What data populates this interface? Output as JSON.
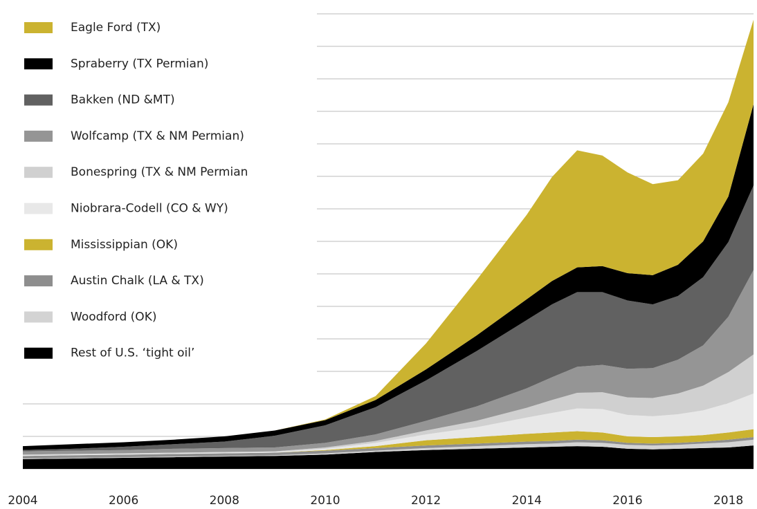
{
  "chart_data": {
    "type": "stacked-area",
    "x": [
      2004,
      2005,
      2006,
      2007,
      2008,
      2009,
      2010,
      2011,
      2012,
      2013,
      2014,
      2014.5,
      2015,
      2015.5,
      2016,
      2016.5,
      2017,
      2017.5,
      2018,
      2018.5
    ],
    "xlim": [
      2004,
      2018.5
    ],
    "xticks": [
      2004,
      2006,
      2008,
      2010,
      2012,
      2014,
      2016,
      2018
    ],
    "ylim": [
      0,
      7
    ],
    "yticks": [
      0,
      0.5,
      1,
      1.5,
      2,
      2.5,
      3,
      3.5,
      4,
      4.5,
      5,
      5.5,
      6,
      6.5,
      7
    ],
    "grid": true,
    "series": [
      {
        "name": "Rest of U.S. ‘tight oil’",
        "color": "#000000",
        "values": [
          0.15,
          0.16,
          0.17,
          0.18,
          0.19,
          0.2,
          0.22,
          0.26,
          0.29,
          0.31,
          0.33,
          0.34,
          0.35,
          0.34,
          0.31,
          0.3,
          0.31,
          0.32,
          0.33,
          0.36
        ]
      },
      {
        "name": "Woodford (OK)",
        "color": "#d3d3d3",
        "values": [
          0.01,
          0.01,
          0.01,
          0.01,
          0.01,
          0.01,
          0.02,
          0.02,
          0.03,
          0.04,
          0.05,
          0.05,
          0.06,
          0.06,
          0.06,
          0.06,
          0.06,
          0.07,
          0.08,
          0.09
        ]
      },
      {
        "name": "Austin Chalk (LA & TX)",
        "color": "#8e8e8e",
        "values": [
          0.04,
          0.04,
          0.04,
          0.04,
          0.04,
          0.04,
          0.04,
          0.04,
          0.04,
          0.04,
          0.04,
          0.04,
          0.04,
          0.04,
          0.03,
          0.03,
          0.03,
          0.03,
          0.04,
          0.04
        ]
      },
      {
        "name": "Mississippian (OK)",
        "color": "#cbb330",
        "values": [
          0,
          0,
          0,
          0,
          0,
          0,
          0.01,
          0.03,
          0.08,
          0.1,
          0.12,
          0.13,
          0.13,
          0.12,
          0.1,
          0.1,
          0.1,
          0.1,
          0.11,
          0.12
        ]
      },
      {
        "name": "Niobrara-Codell (CO & WY)",
        "color": "#e8e8e8",
        "values": [
          0.01,
          0.01,
          0.01,
          0.01,
          0.01,
          0.01,
          0.02,
          0.05,
          0.09,
          0.15,
          0.25,
          0.3,
          0.35,
          0.36,
          0.33,
          0.32,
          0.34,
          0.38,
          0.45,
          0.55
        ]
      },
      {
        "name": "Bonespring (TX & NM Permian",
        "color": "#d0d0d0",
        "values": [
          0.01,
          0.01,
          0.01,
          0.01,
          0.01,
          0.01,
          0.02,
          0.03,
          0.06,
          0.1,
          0.15,
          0.2,
          0.24,
          0.26,
          0.27,
          0.28,
          0.32,
          0.38,
          0.48,
          0.6
        ]
      },
      {
        "name": "Wolfcamp (TX & NM Permian)",
        "color": "#959595",
        "values": [
          0.05,
          0.05,
          0.05,
          0.06,
          0.06,
          0.06,
          0.07,
          0.1,
          0.15,
          0.22,
          0.3,
          0.35,
          0.4,
          0.42,
          0.44,
          0.46,
          0.52,
          0.62,
          0.85,
          1.3
        ]
      },
      {
        "name": "Bakken (ND &MT)",
        "color": "#616161",
        "values": [
          0.02,
          0.03,
          0.05,
          0.07,
          0.1,
          0.18,
          0.27,
          0.42,
          0.62,
          0.85,
          1.05,
          1.12,
          1.15,
          1.12,
          1.05,
          0.98,
          0.98,
          1.05,
          1.15,
          1.3
        ]
      },
      {
        "name": "Spraberry (TX Permian)",
        "color": "#000000",
        "values": [
          0.06,
          0.07,
          0.07,
          0.07,
          0.08,
          0.08,
          0.08,
          0.11,
          0.17,
          0.24,
          0.32,
          0.36,
          0.38,
          0.4,
          0.42,
          0.45,
          0.48,
          0.55,
          0.7,
          1.25
        ]
      },
      {
        "name": "Eagle Ford (TX)",
        "color": "#cbb330",
        "values": [
          0,
          0,
          0,
          0,
          0,
          0,
          0.01,
          0.06,
          0.4,
          0.85,
          1.3,
          1.6,
          1.8,
          1.7,
          1.55,
          1.4,
          1.3,
          1.35,
          1.45,
          1.3
        ]
      }
    ]
  }
}
